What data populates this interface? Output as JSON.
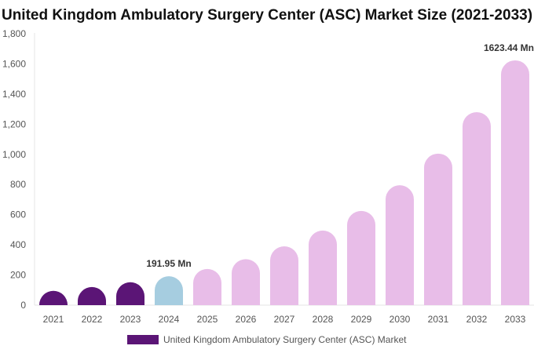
{
  "chart_data": {
    "type": "bar",
    "title": "United Kingdom Ambulatory Surgery Center (ASC) Market Size (2021-2033)",
    "categories": [
      "2021",
      "2022",
      "2023",
      "2024",
      "2025",
      "2026",
      "2027",
      "2028",
      "2029",
      "2030",
      "2031",
      "2032",
      "2033"
    ],
    "series": [
      {
        "name": "United Kingdom Ambulatory Surgery Center (ASC) Market",
        "values": [
          95,
          120,
          152,
          191.95,
          240,
          305,
          390,
          495,
          625,
          795,
          1005,
          1280,
          1623.44
        ]
      }
    ],
    "ylim": [
      0,
      1800
    ],
    "yticks": [
      0,
      200,
      400,
      600,
      800,
      1000,
      1200,
      1400,
      1600,
      1800
    ],
    "ytick_labels": [
      "0",
      "200",
      "400",
      "600",
      "800",
      "1,000",
      "1,200",
      "1,400",
      "1,600",
      "1,800"
    ],
    "data_labels": [
      {
        "index": 3,
        "text": "191.95 Mn"
      },
      {
        "index": 12,
        "text": "1623.44 Mn"
      }
    ],
    "colors": {
      "historical": "#5b1576",
      "base_year": "#a6cde0",
      "forecast": "#e8bde8"
    },
    "legend_position": "bottom",
    "grid": false
  }
}
